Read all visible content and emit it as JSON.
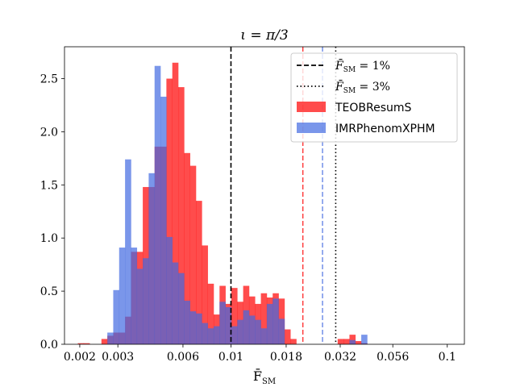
{
  "chart_data": {
    "type": "histogram",
    "title": "ι = π/3",
    "xlabel": "F̄",
    "xlabel_sub": "SM",
    "ylabel": "",
    "xscale": "log",
    "xlim": [
      0.0017,
      0.12
    ],
    "ylim": [
      0,
      2.8
    ],
    "x_ticks": [
      {
        "value": 0.002,
        "label": "0.002"
      },
      {
        "value": 0.003,
        "label": "0.003"
      },
      {
        "value": 0.006,
        "label": "0.006"
      },
      {
        "value": 0.01,
        "label": "0.01"
      },
      {
        "value": 0.018,
        "label": "0.018"
      },
      {
        "value": 0.032,
        "label": "0.032"
      },
      {
        "value": 0.056,
        "label": "0.056"
      },
      {
        "value": 0.1,
        "label": "0.1"
      }
    ],
    "y_ticks": [
      {
        "value": 0.0,
        "label": "0.0"
      },
      {
        "value": 0.5,
        "label": "0.5"
      },
      {
        "value": 1.0,
        "label": "1.0"
      },
      {
        "value": 1.5,
        "label": "1.5"
      },
      {
        "value": 2.0,
        "label": "2.0"
      },
      {
        "value": 2.5,
        "label": "2.5"
      }
    ],
    "bin_log_start": -2.708,
    "bin_log_width": 0.0273,
    "series": [
      {
        "name": "TEOBResumS",
        "color": "#ff0000",
        "alpha": 0.7,
        "bins": [
          [
            0,
            0.01
          ],
          [
            1,
            0.01
          ],
          [
            4,
            0.05
          ],
          [
            5,
            0.08
          ],
          [
            6,
            0.11
          ],
          [
            7,
            0.11
          ],
          [
            8,
            0.26
          ],
          [
            9,
            0.87
          ],
          [
            10,
            0.87
          ],
          [
            11,
            1.48
          ],
          [
            12,
            1.48
          ],
          [
            13,
            1.86
          ],
          [
            14,
            1.86
          ],
          [
            15,
            2.5
          ],
          [
            16,
            2.65
          ],
          [
            17,
            2.42
          ],
          [
            18,
            1.8
          ],
          [
            19,
            1.68
          ],
          [
            20,
            1.35
          ],
          [
            21,
            0.93
          ],
          [
            22,
            0.57
          ],
          [
            23,
            0.28
          ],
          [
            24,
            0.55
          ],
          [
            25,
            0.38
          ],
          [
            26,
            0.53
          ],
          [
            27,
            0.4
          ],
          [
            28,
            0.55
          ],
          [
            29,
            0.45
          ],
          [
            30,
            0.38
          ],
          [
            31,
            0.48
          ],
          [
            32,
            0.44
          ],
          [
            33,
            0.48
          ],
          [
            34,
            0.43
          ],
          [
            35,
            0.14
          ],
          [
            36,
            0.05
          ],
          [
            44,
            0.05
          ],
          [
            45,
            0.05
          ],
          [
            46,
            0.09
          ],
          [
            47,
            0.03
          ],
          [
            48,
            0.01
          ]
        ]
      },
      {
        "name": "IMRPhenomXPHM",
        "color": "#4169e1",
        "alpha": 0.7,
        "bins": [
          [
            5,
            0.11
          ],
          [
            6,
            0.51
          ],
          [
            7,
            0.91
          ],
          [
            8,
            1.74
          ],
          [
            9,
            0.91
          ],
          [
            10,
            0.71
          ],
          [
            11,
            0.81
          ],
          [
            12,
            1.61
          ],
          [
            13,
            2.62
          ],
          [
            14,
            2.33
          ],
          [
            15,
            1.01
          ],
          [
            16,
            0.77
          ],
          [
            17,
            0.67
          ],
          [
            18,
            0.41
          ],
          [
            19,
            0.31
          ],
          [
            20,
            0.29
          ],
          [
            21,
            0.2
          ],
          [
            22,
            0.15
          ],
          [
            23,
            0.17
          ],
          [
            24,
            0.4
          ],
          [
            25,
            0.35
          ],
          [
            26,
            0.17
          ],
          [
            27,
            0.23
          ],
          [
            28,
            0.32
          ],
          [
            29,
            0.27
          ],
          [
            30,
            0.23
          ],
          [
            31,
            0.15
          ],
          [
            32,
            0.38
          ],
          [
            33,
            0.43
          ],
          [
            34,
            0.24
          ],
          [
            46,
            0.04
          ],
          [
            48,
            0.09
          ]
        ]
      }
    ],
    "vlines": [
      {
        "x": 0.01,
        "color": "#000000",
        "style": "dashed"
      },
      {
        "x": 0.0305,
        "color": "#000000",
        "style": "dotted"
      },
      {
        "x": 0.0215,
        "color": "#ff0000",
        "style": "dashed"
      },
      {
        "x": 0.0265,
        "color": "#4169e1",
        "style": "dashed"
      }
    ],
    "legend": {
      "position": "top-right",
      "entries": [
        {
          "label_main": "F̄",
          "label_sub": "SM",
          "label_rest": " = 1%",
          "kind": "line-dashed",
          "color": "#000000"
        },
        {
          "label_main": "F̄",
          "label_sub": "SM",
          "label_rest": " = 3%",
          "kind": "line-dotted",
          "color": "#000000"
        },
        {
          "label": "TEOBResumS",
          "kind": "patch",
          "color": "#ff0000"
        },
        {
          "label": "IMRPhenomXPHM",
          "kind": "patch",
          "color": "#4169e1"
        }
      ]
    }
  }
}
